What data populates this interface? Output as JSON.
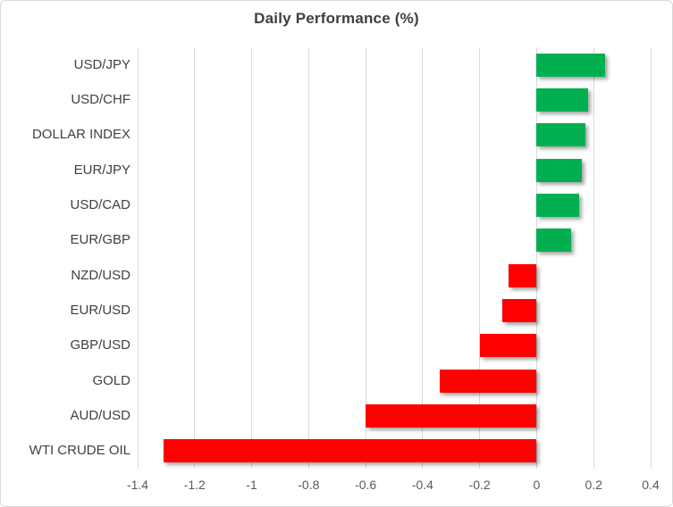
{
  "chart_data": {
    "type": "bar",
    "orientation": "horizontal",
    "title": "Daily Performance (%)",
    "categories": [
      "USD/JPY",
      "USD/CHF",
      "DOLLAR INDEX",
      "EUR/JPY",
      "USD/CAD",
      "EUR/GBP",
      "NZD/USD",
      "EUR/USD",
      "GBP/USD",
      "GOLD",
      "AUD/USD",
      "WTI CRUDE OIL"
    ],
    "values": [
      0.24,
      0.18,
      0.17,
      0.16,
      0.15,
      0.12,
      -0.1,
      -0.12,
      -0.2,
      -0.34,
      -0.6,
      -1.31
    ],
    "xlabel": "",
    "ylabel": "",
    "xlim": [
      -1.4,
      0.4
    ],
    "xticks": [
      -1.4,
      -1.2,
      -1.0,
      -0.8,
      -0.6,
      -0.4,
      -0.2,
      0,
      0.2,
      0.4
    ],
    "xtick_labels": [
      "-1.4",
      "-1.2",
      "-1",
      "-0.8",
      "-0.6",
      "-0.4",
      "-0.2",
      "0",
      "0.2",
      "0.4"
    ],
    "grid": "vertical",
    "legend": "none",
    "colors": {
      "positive": "#00B050",
      "negative": "#FF0000",
      "gridline": "#D9D9D9",
      "title_text": "#3F3F3F",
      "category_text": "#404040",
      "tick_text": "#595959",
      "frame_border": "#D9D9D9",
      "background": "#FFFFFF"
    }
  }
}
